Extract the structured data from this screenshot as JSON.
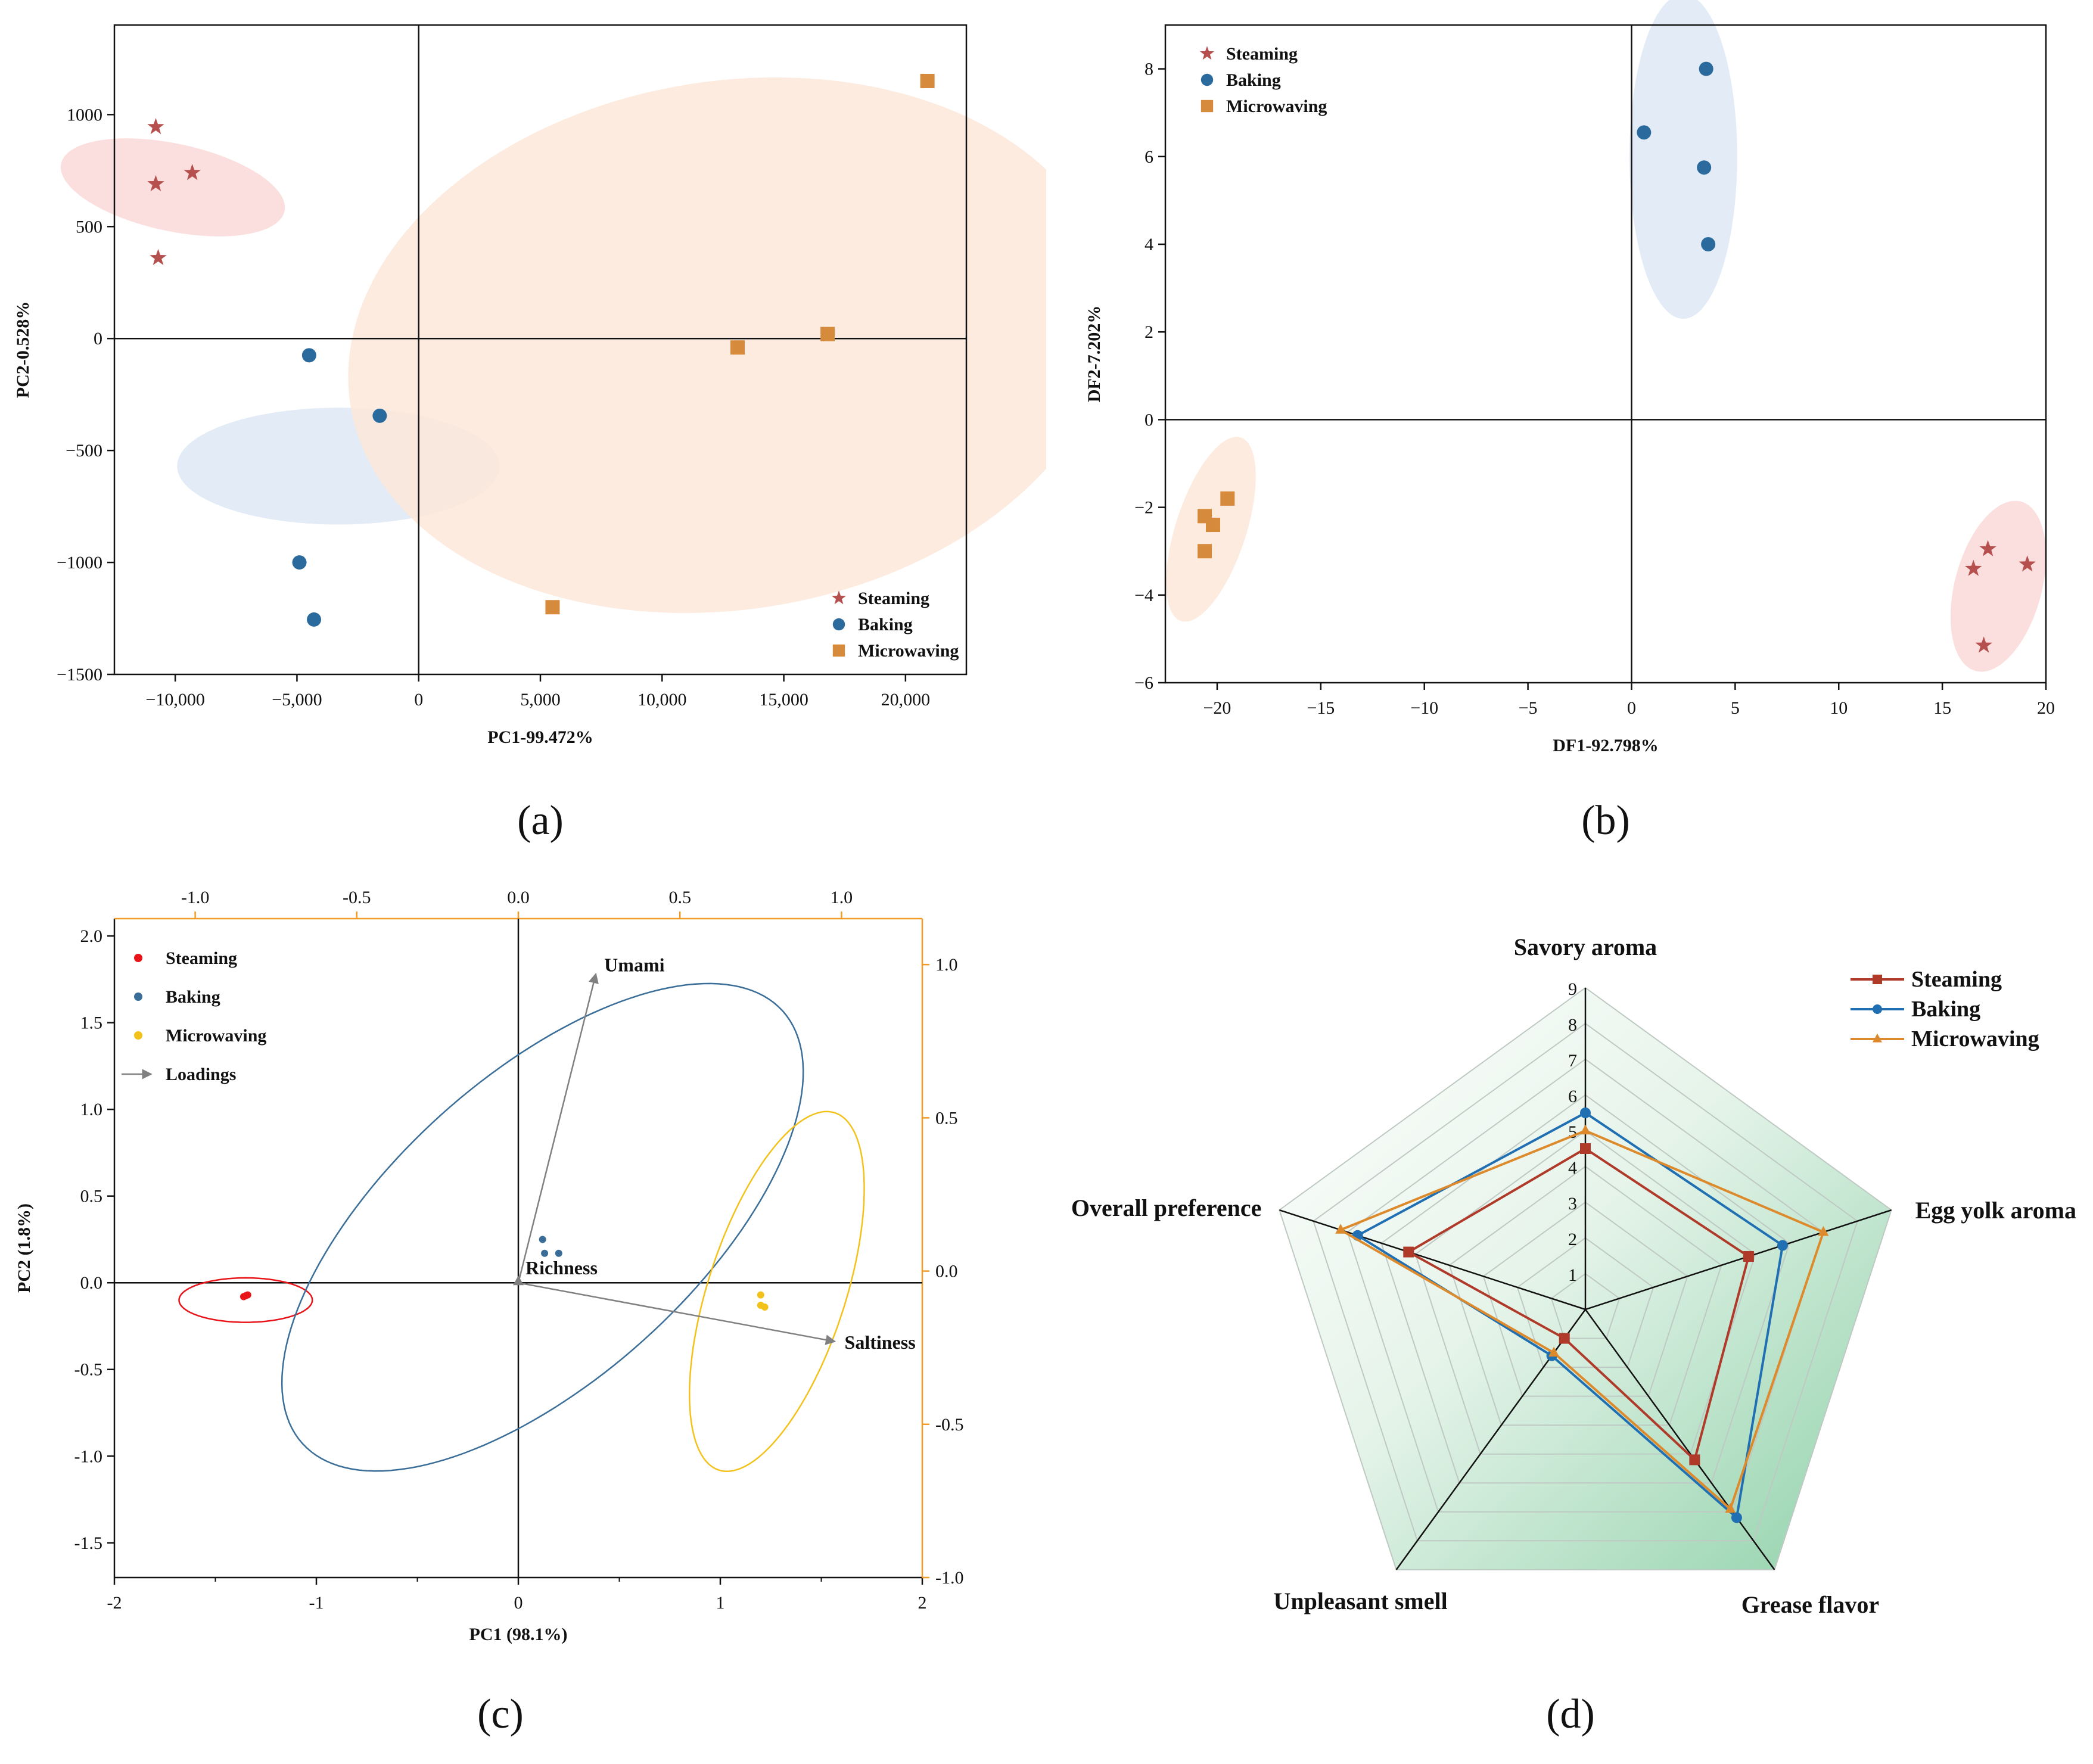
{
  "colors": {
    "steaming_a": "#b5504e",
    "baking_a": "#2b6a9d",
    "microwaving_a": "#d68a3c",
    "steaming_c": "#e8141a",
    "baking_c": "#3a6e99",
    "microwaving_c": "#f2c21b",
    "loadings": "#808080",
    "axis_top_right_c": "#f29b26",
    "steaming_d": "#b03a2a",
    "baking_d": "#1f6fb2",
    "microwaving_d": "#dd8a2c"
  },
  "chart_data": [
    {
      "panel_label": "(a)",
      "type": "scatter",
      "title": "",
      "xlabel": "PC1-99.472%",
      "ylabel": "PC2-0.528%",
      "xlim": [
        -12500,
        22500
      ],
      "ylim": [
        -1500,
        1400
      ],
      "xticks": [
        -10000,
        -5000,
        0,
        5000,
        10000,
        15000,
        20000
      ],
      "xtick_labels": [
        "−10,000",
        "−5,000",
        "0",
        "5,000",
        "10,000",
        "15,000",
        "20,000"
      ],
      "yticks": [
        -1500,
        -1000,
        -500,
        0,
        500,
        1000
      ],
      "ytick_labels": [
        "−1500",
        "−1000",
        "−500",
        "0",
        "500",
        "1000"
      ],
      "legend_position": "bottom-right",
      "series": [
        {
          "name": "Steaming",
          "marker": "star",
          "color": "#b5504e",
          "x": [
            -10800,
            -10800,
            -9300,
            -10700
          ],
          "y": [
            945,
            690,
            740,
            360
          ]
        },
        {
          "name": "Baking",
          "marker": "circle",
          "color": "#2b6a9d",
          "x": [
            -4500,
            -1600,
            -4900,
            -4300
          ],
          "y": [
            -75,
            -345,
            -1000,
            -1255
          ]
        },
        {
          "name": "Microwaving",
          "marker": "square",
          "color": "#d68a3c",
          "x": [
            5500,
            13100,
            16800,
            20900
          ],
          "y": [
            -1200,
            -40,
            20,
            1150
          ]
        }
      ],
      "ellipses": [
        {
          "cx": -10100,
          "cy": 675,
          "rx": 1800,
          "ry": 510,
          "angle": -78,
          "fill": "#fad9d8"
        },
        {
          "cx": -3300,
          "cy": -570,
          "rx": 2400,
          "ry": 720,
          "angle": -90,
          "fill": "#dde8f5"
        },
        {
          "cx": 12800,
          "cy": -30,
          "rx": 15800,
          "ry": 1180,
          "angle": -9,
          "fill": "#fbe8d8"
        }
      ]
    },
    {
      "panel_label": "(b)",
      "type": "scatter",
      "title": "",
      "xlabel": "DF1-92.798%",
      "ylabel": "DF2-7.202%",
      "xlim": [
        -22.5,
        20
      ],
      "ylim": [
        -6,
        9
      ],
      "xticks": [
        -20,
        -15,
        -10,
        -5,
        0,
        5,
        10,
        15,
        20
      ],
      "xtick_labels": [
        "−20",
        "−15",
        "−10",
        "−5",
        "0",
        "5",
        "10",
        "15",
        "20"
      ],
      "yticks": [
        -6,
        -4,
        -2,
        0,
        2,
        4,
        6,
        8
      ],
      "ytick_labels": [
        "−6",
        "−4",
        "−2",
        "0",
        "2",
        "4",
        "6",
        "8"
      ],
      "legend_position": "top-left",
      "series": [
        {
          "name": "Steaming",
          "marker": "star",
          "color": "#b5504e",
          "x": [
            17.2,
            16.5,
            19.1,
            17.0
          ],
          "y": [
            -2.95,
            -3.4,
            -3.3,
            -5.15
          ]
        },
        {
          "name": "Baking",
          "marker": "circle",
          "color": "#2b6a9d",
          "x": [
            3.6,
            0.6,
            3.5,
            3.7
          ],
          "y": [
            8.0,
            6.55,
            5.75,
            4.0
          ]
        },
        {
          "name": "Microwaving",
          "marker": "square",
          "color": "#d68a3c",
          "x": [
            -19.5,
            -20.6,
            -20.2,
            -20.6
          ],
          "y": [
            -1.8,
            -2.2,
            -2.4,
            -3.0
          ]
        }
      ],
      "ellipses": [
        {
          "cx": 2.5,
          "cy": 6.0,
          "rx": 2.6,
          "ry": 3.7,
          "angle": 0,
          "fill": "#dde8f5"
        },
        {
          "cx": 17.7,
          "cy": -3.8,
          "rx": 2.1,
          "ry": 2.0,
          "angle": 0,
          "fill": "#fad9d8"
        },
        {
          "cx": -20.3,
          "cy": -2.5,
          "rx": 1.7,
          "ry": 2.2,
          "angle": 0,
          "fill": "#fbe8d8"
        }
      ]
    },
    {
      "panel_label": "(c)",
      "type": "scatter",
      "title": "",
      "xlabel": "PC1 (98.1%)",
      "ylabel": "PC2 (1.8%)",
      "xlim": [
        -2,
        2
      ],
      "ylim": [
        -1.7,
        2.1
      ],
      "xticks": [
        -2,
        -1,
        0,
        1,
        2
      ],
      "xtick_labels": [
        "-2",
        "-1",
        "0",
        "1",
        "2"
      ],
      "yticks": [
        -1.5,
        -1.0,
        -0.5,
        0.0,
        0.5,
        1.0,
        1.5,
        2.0
      ],
      "ytick_labels": [
        "-1.5",
        "-1.0",
        "-0.5",
        "0.0",
        "0.5",
        "1.0",
        "1.5",
        "2.0"
      ],
      "top_xticks": [
        -1.0,
        -0.5,
        0.0,
        0.5,
        1.0
      ],
      "top_xtick_labels": [
        "-1.0",
        "-0.5",
        "0.0",
        "0.5",
        "1.0"
      ],
      "right_yticks": [
        -1.0,
        -0.5,
        0.0,
        0.5,
        1.0
      ],
      "right_ytick_labels": [
        "-1.0",
        "-0.5",
        "0.0",
        "0.5",
        "1.0"
      ],
      "loadings_xlim": [
        -1.25,
        1.25
      ],
      "loadings_ylim": [
        -1.0,
        1.15
      ],
      "legend_position": "top-left",
      "series": [
        {
          "name": "Steaming",
          "color": "#e8141a",
          "x": [
            -1.36,
            -1.34,
            -1.35
          ],
          "y": [
            -0.08,
            -0.07,
            -0.075
          ]
        },
        {
          "name": "Baking",
          "color": "#3a6e99",
          "x": [
            0.12,
            0.13,
            0.2
          ],
          "y": [
            0.25,
            0.17,
            0.17
          ]
        },
        {
          "name": "Microwaving",
          "color": "#f2c21b",
          "x": [
            1.2,
            1.2,
            1.22
          ],
          "y": [
            -0.07,
            -0.13,
            -0.14
          ]
        }
      ],
      "loadings": [
        {
          "name": "Umami",
          "x": 0.24,
          "y": 0.97
        },
        {
          "name": "Richness",
          "x": 0.0,
          "y": 0.0
        },
        {
          "name": "Saltiness",
          "x": 0.98,
          "y": -0.23
        }
      ],
      "loadings_legend": "Loadings",
      "ellipses": [
        {
          "cx": -1.35,
          "cy": -0.1,
          "rx": 0.33,
          "ry": 0.11,
          "angle": 0,
          "stroke": "#e8141a"
        },
        {
          "cx": 0.12,
          "cy": 0.32,
          "rx": 1.6,
          "ry": 0.75,
          "angle": -42,
          "stroke": "#3a6e99"
        },
        {
          "cx": 1.28,
          "cy": -0.05,
          "rx": 0.93,
          "ry": 0.34,
          "angle": -72,
          "stroke": "#f2c21b"
        }
      ]
    },
    {
      "panel_label": "(d)",
      "type": "radar",
      "title": "",
      "axes": [
        "Savory aroma",
        "Egg yolk aroma",
        "Grease flavor",
        "Unpleasant smell",
        "Overall preference"
      ],
      "scale": [
        1,
        2,
        3,
        4,
        5,
        6,
        7,
        8,
        9
      ],
      "scale_labels": [
        "1",
        "2",
        "3",
        "4",
        "5",
        "6",
        "7",
        "8",
        "9"
      ],
      "rmin": 0,
      "rmax": 9,
      "legend_position": "top-right",
      "series": [
        {
          "name": "Steaming",
          "marker": "square",
          "color": "#b03a2a",
          "values": [
            4.5,
            4.8,
            5.2,
            1.0,
            5.2
          ]
        },
        {
          "name": "Baking",
          "marker": "circle",
          "color": "#1f6fb2",
          "values": [
            5.5,
            5.8,
            7.2,
            1.6,
            6.7
          ]
        },
        {
          "name": "Microwaving",
          "marker": "triangle",
          "color": "#dd8a2c",
          "values": [
            5.0,
            7.0,
            6.9,
            1.5,
            7.2
          ]
        }
      ]
    }
  ]
}
